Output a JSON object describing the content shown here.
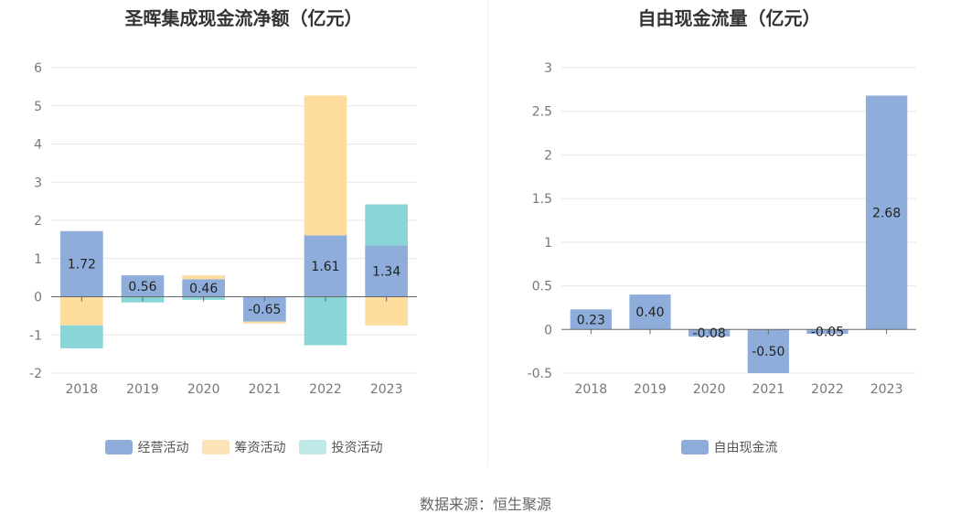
{
  "colors": {
    "operating": "#8eadda",
    "financing": "#fddc9e",
    "investing": "#8ad5d7",
    "fcf": "#8eadda",
    "grid": "#e6e6e6",
    "axis": "#666666"
  },
  "source_text": "数据来源：恒生聚源",
  "chart_data": [
    {
      "type": "bar",
      "stacked": true,
      "title": "圣晖集成现金流净额（亿元）",
      "categories": [
        "2018",
        "2019",
        "2020",
        "2021",
        "2022",
        "2023"
      ],
      "series": [
        {
          "name": "经营活动",
          "color_key": "operating",
          "values": [
            1.72,
            0.56,
            0.46,
            -0.65,
            1.61,
            1.34
          ]
        },
        {
          "name": "筹资活动",
          "color_key": "financing",
          "values": [
            -0.75,
            0.0,
            0.1,
            -0.05,
            3.66,
            -0.75
          ]
        },
        {
          "name": "投资活动",
          "color_key": "investing",
          "values": [
            -0.6,
            -0.15,
            -0.08,
            0.0,
            -1.27,
            1.08
          ]
        }
      ],
      "data_labels": [
        "1.72",
        "0.56",
        "0.46",
        "-0.65",
        "1.61",
        "1.34"
      ],
      "yticks": [
        "6",
        "5",
        "4",
        "3",
        "2",
        "1",
        "0",
        "-1",
        "-2"
      ],
      "ylim": [
        -2,
        6
      ],
      "grid": true,
      "legend_position": "bottom"
    },
    {
      "type": "bar",
      "title": "自由现金流量（亿元）",
      "categories": [
        "2018",
        "2019",
        "2020",
        "2021",
        "2022",
        "2023"
      ],
      "series": [
        {
          "name": "自由现金流",
          "color_key": "fcf",
          "values": [
            0.23,
            0.4,
            -0.08,
            -0.5,
            -0.05,
            2.68
          ]
        }
      ],
      "data_labels": [
        "0.23",
        "0.40",
        "-0.08",
        "-0.50",
        "-0.05",
        "2.68"
      ],
      "yticks": [
        "3",
        "2.5",
        "2",
        "1.5",
        "1",
        "0.5",
        "0",
        "-0.5"
      ],
      "ylim": [
        -0.5,
        3
      ],
      "grid": true,
      "legend_position": "bottom"
    }
  ]
}
